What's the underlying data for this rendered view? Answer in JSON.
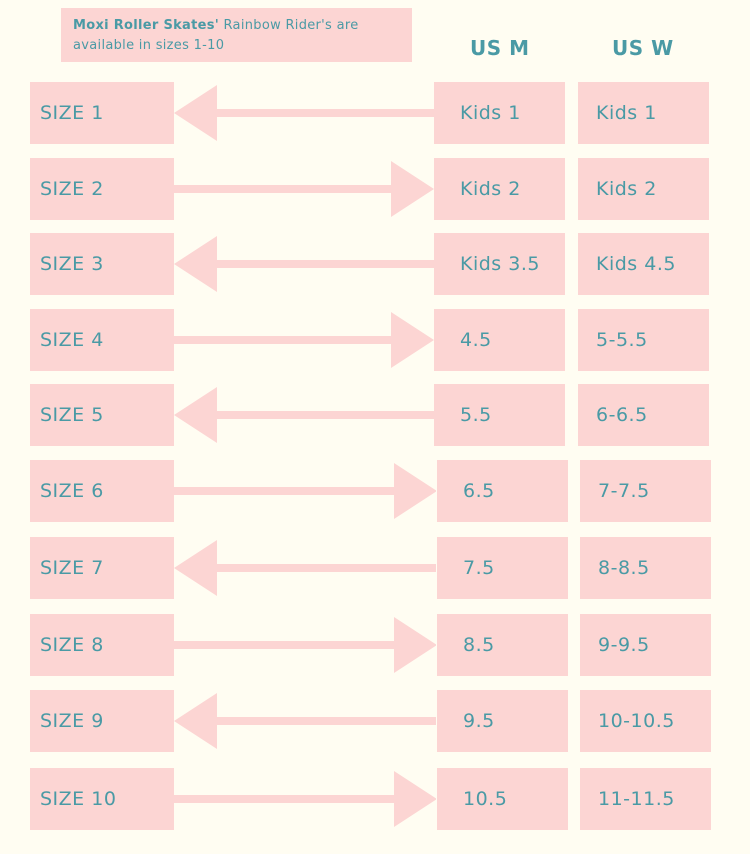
{
  "note": {
    "brand": "Moxi Roller Skates'",
    "text": " Rainbow Rider's are available in sizes 1-10"
  },
  "headers": {
    "us_m": "US M",
    "us_w": "US W"
  },
  "colors": {
    "background": "#fffdf2",
    "box": "#fcd5d3",
    "text": "#4a9aa5"
  },
  "rows": [
    {
      "size": "SIZE 1",
      "us_m": "Kids 1",
      "us_w": "Kids 1",
      "arrow": "left"
    },
    {
      "size": "SIZE 2",
      "us_m": "Kids 2",
      "us_w": "Kids 2",
      "arrow": "right"
    },
    {
      "size": "SIZE 3",
      "us_m": "Kids 3.5",
      "us_w": "Kids 4.5",
      "arrow": "left"
    },
    {
      "size": "SIZE 4",
      "us_m": "4.5",
      "us_w": "5-5.5",
      "arrow": "right"
    },
    {
      "size": "SIZE 5",
      "us_m": "5.5",
      "us_w": "6-6.5",
      "arrow": "left"
    },
    {
      "size": "SIZE 6",
      "us_m": "6.5",
      "us_w": "7-7.5",
      "arrow": "right"
    },
    {
      "size": "SIZE 7",
      "us_m": "7.5",
      "us_w": "8-8.5",
      "arrow": "left"
    },
    {
      "size": "SIZE 8",
      "us_m": "8.5",
      "us_w": "9-9.5",
      "arrow": "right"
    },
    {
      "size": "SIZE 9",
      "us_m": "9.5",
      "us_w": "10-10.5",
      "arrow": "left"
    },
    {
      "size": "SIZE 10",
      "us_m": "10.5",
      "us_w": "11-11.5",
      "arrow": "right"
    }
  ]
}
